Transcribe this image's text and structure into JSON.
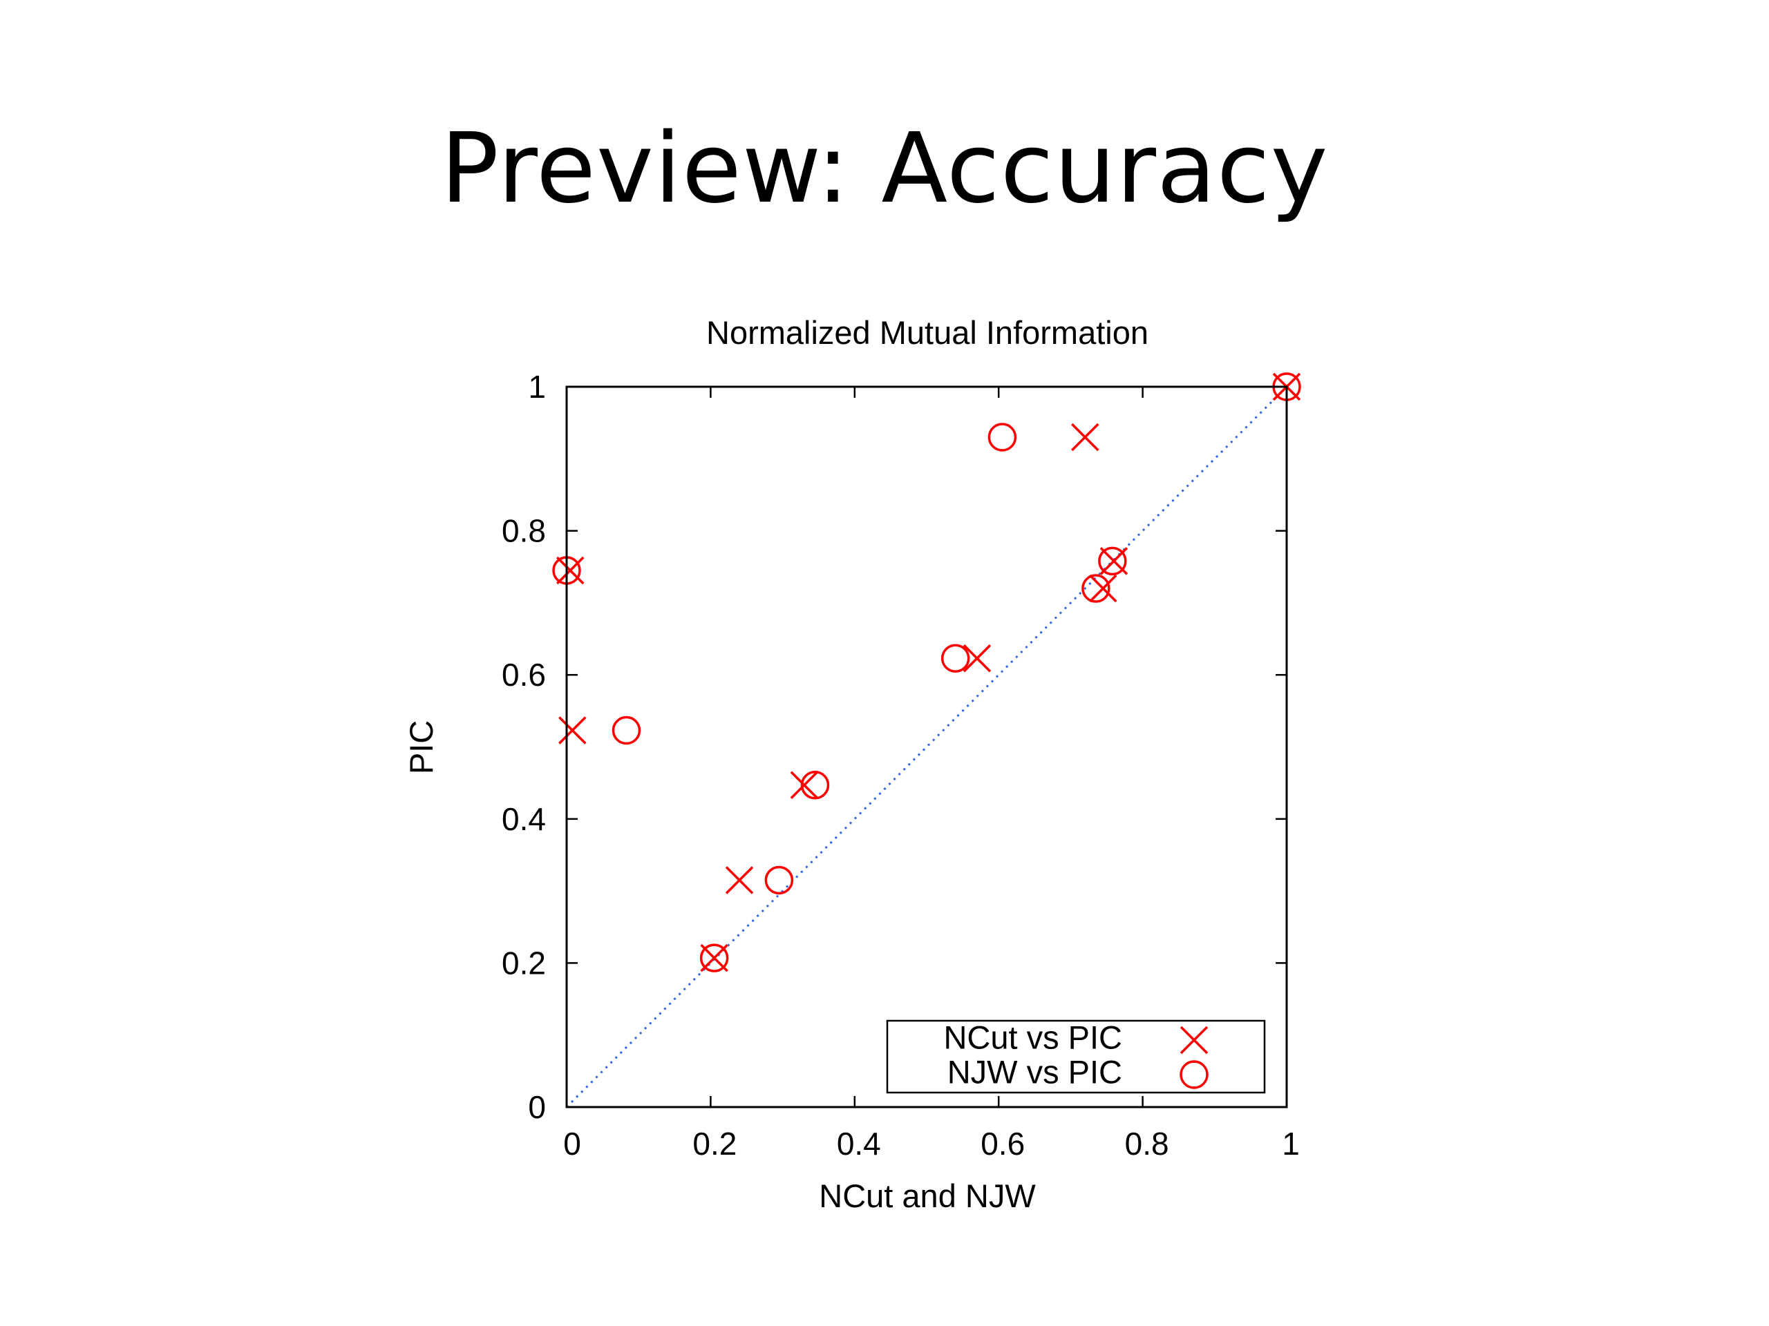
{
  "slide": {
    "title": "Preview: Accuracy"
  },
  "chart_data": {
    "type": "scatter",
    "title": "Normalized Mutual Information",
    "xlabel": "NCut and NJW",
    "ylabel": "PIC",
    "xlim": [
      0,
      1
    ],
    "ylim": [
      0,
      1
    ],
    "x_ticks": [
      "0",
      "0.2",
      "0.4",
      "0.6",
      "0.8",
      "1"
    ],
    "y_ticks": [
      "0",
      "0.2",
      "0.4",
      "0.6",
      "0.8",
      "1"
    ],
    "grid": false,
    "legend_position": "bottom-right",
    "reference_line": {
      "style": "dotted",
      "color": "#3366dd",
      "from": [
        0,
        0
      ],
      "to": [
        1,
        1
      ]
    },
    "series": [
      {
        "name": "NCut vs PIC",
        "marker": "x",
        "color": "#ff0000",
        "points": [
          {
            "x": 0.005,
            "y": 0.745
          },
          {
            "x": 0.008,
            "y": 0.523
          },
          {
            "x": 0.205,
            "y": 0.207
          },
          {
            "x": 0.24,
            "y": 0.315
          },
          {
            "x": 0.33,
            "y": 0.447
          },
          {
            "x": 0.57,
            "y": 0.623
          },
          {
            "x": 0.72,
            "y": 0.93
          },
          {
            "x": 0.745,
            "y": 0.72
          },
          {
            "x": 0.76,
            "y": 0.758
          },
          {
            "x": 1.0,
            "y": 1.0
          }
        ]
      },
      {
        "name": "NJW vs PIC",
        "marker": "circle",
        "color": "#ff0000",
        "points": [
          {
            "x": 0.0,
            "y": 0.745
          },
          {
            "x": 0.083,
            "y": 0.523
          },
          {
            "x": 0.205,
            "y": 0.207
          },
          {
            "x": 0.295,
            "y": 0.315
          },
          {
            "x": 0.345,
            "y": 0.447
          },
          {
            "x": 0.54,
            "y": 0.623
          },
          {
            "x": 0.605,
            "y": 0.93
          },
          {
            "x": 0.735,
            "y": 0.72
          },
          {
            "x": 0.758,
            "y": 0.758
          },
          {
            "x": 1.0,
            "y": 1.0
          }
        ]
      }
    ]
  }
}
